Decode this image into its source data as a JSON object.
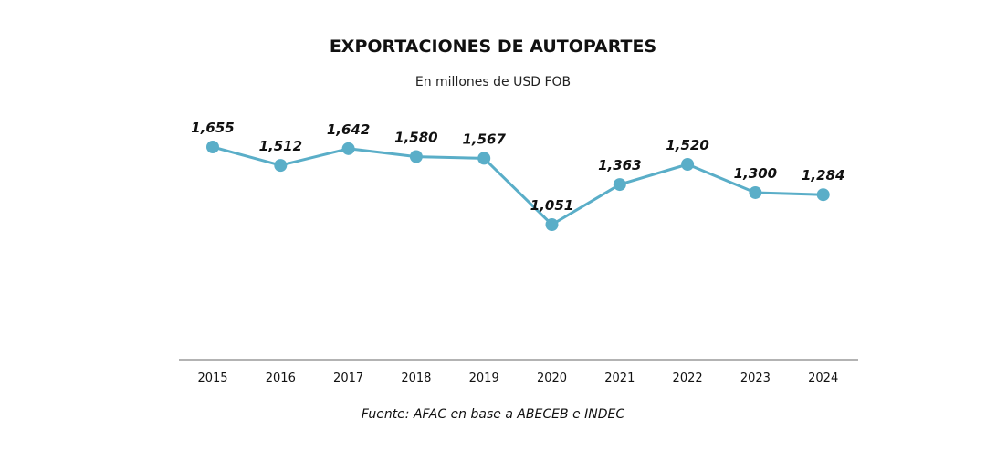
{
  "chart_data": {
    "type": "line",
    "title": "EXPORTACIONES DE AUTOPARTES",
    "subtitle": "En millones de USD FOB",
    "source": "Fuente: AFAC en base a ABECEB e INDEC",
    "categories": [
      "2015",
      "2016",
      "2017",
      "2018",
      "2019",
      "2020",
      "2021",
      "2022",
      "2023",
      "2024"
    ],
    "series": [
      {
        "values": [
          1655,
          1512,
          1642,
          1580,
          1567,
          1051,
          1363,
          1520,
          1300,
          1284
        ],
        "labels": [
          "1,655",
          "1,512",
          "1,642",
          "1,580",
          "1,567",
          "1,051",
          "1,363",
          "1,520",
          "1,300",
          "1,284"
        ]
      }
    ],
    "grid": false,
    "legend": "none",
    "colors": {
      "line": "#5aaec8",
      "axis": "#9a9a9a"
    }
  }
}
